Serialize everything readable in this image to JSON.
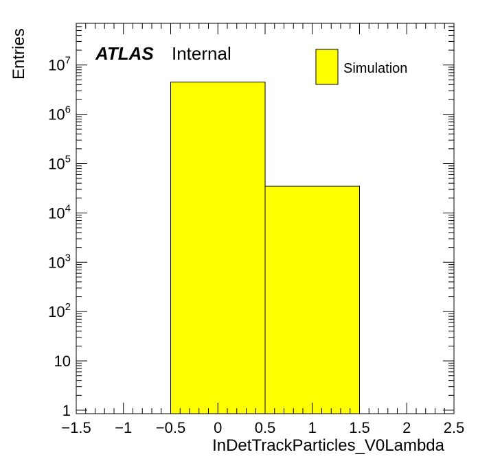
{
  "chart_data": {
    "type": "bar",
    "histogram": true,
    "bin_edges": [
      -0.5,
      0.5,
      1.5
    ],
    "values": [
      4500000,
      35000
    ],
    "series": [
      {
        "name": "Simulation",
        "values": [
          4500000,
          35000
        ],
        "color": "#ffff00"
      }
    ],
    "xlabel": "InDetTrackParticles_V0Lambda",
    "ylabel": "Entries",
    "xlim": [
      -1.5,
      2.5
    ],
    "ylim": [
      0.85,
      70000000
    ],
    "yscale": "log",
    "x_tick_labels": [
      "−1.5",
      "−1",
      "−0.5",
      "0",
      "0.5",
      "1",
      "1.5",
      "2",
      "2.5"
    ],
    "y_tick_labels": [
      {
        "base": "1",
        "exp": ""
      },
      {
        "base": "10",
        "exp": ""
      },
      {
        "base": "10",
        "exp": "2"
      },
      {
        "base": "10",
        "exp": "3"
      },
      {
        "base": "10",
        "exp": "4"
      },
      {
        "base": "10",
        "exp": "5"
      },
      {
        "base": "10",
        "exp": "6"
      },
      {
        "base": "10",
        "exp": "7"
      }
    ],
    "grid": false,
    "legend_position": "top-right",
    "annotations": {
      "atlas": "ATLAS",
      "status": "Internal"
    }
  }
}
